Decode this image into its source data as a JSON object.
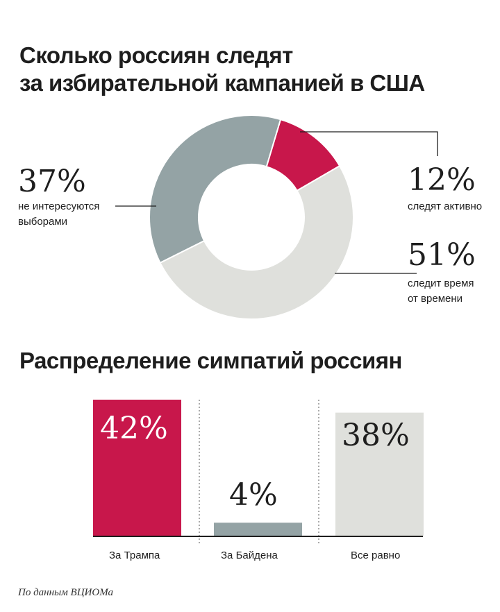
{
  "chart_data": [
    {
      "type": "pie",
      "title": "Сколько россиян следят\nза избирательной кампанией в США",
      "title_lines": [
        "Сколько россиян следят",
        "за избирательной кампанией в США"
      ],
      "slices": [
        {
          "value": 12,
          "pct_label": "12%",
          "label": "следят активно",
          "label_lines": [
            "следят активно"
          ],
          "color": "#c8174b"
        },
        {
          "value": 51,
          "pct_label": "51%",
          "label": "следит время от времени",
          "label_lines": [
            "следит время",
            "от времени"
          ],
          "color": "#dfe0dc"
        },
        {
          "value": 37,
          "pct_label": "37%",
          "label": "не интересуются выборами",
          "label_lines": [
            "не интересуются",
            "выборами"
          ],
          "color": "#94a3a5"
        }
      ]
    },
    {
      "type": "bar",
      "title": "Распределение симпатий россиян",
      "categories": [
        "За Трампа",
        "За Байдена",
        "Все равно"
      ],
      "values": [
        42,
        4,
        38
      ],
      "value_labels": [
        "42%",
        "4%",
        "38%"
      ],
      "colors": [
        "#c8174b",
        "#94a3a5",
        "#dfe0dc"
      ],
      "ylim": [
        0,
        42
      ]
    }
  ],
  "source": "По данным ВЦИОМа"
}
